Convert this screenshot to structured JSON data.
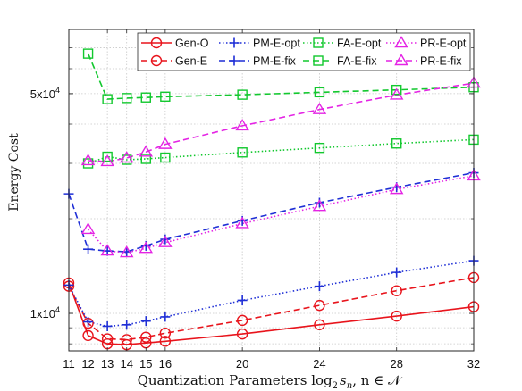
{
  "chart_data": {
    "type": "line",
    "title": "",
    "xlabel": "Quantization Parameters log",
    "xlabel_sub": "2",
    "xlabel_var": "s",
    "xlabel_var_sub": "n",
    "xlabel_tail": ", n ∈ 𝒩",
    "ylabel": "Energy Cost",
    "yscale": "log",
    "ylim": [
      7600,
      80000
    ],
    "xlim": [
      11,
      32
    ],
    "x_ticks": [
      11,
      12,
      13,
      14,
      15,
      16,
      20,
      24,
      28,
      32
    ],
    "y_tick_labels": [
      {
        "value": 10000,
        "label": "1x10",
        "exp": "4"
      },
      {
        "value": 50000,
        "label": "5x10",
        "exp": "4"
      }
    ],
    "grid": true,
    "legend_position": "top-right",
    "series": [
      {
        "name": "Gen-O",
        "color": "#e8141c",
        "dash": "solid",
        "marker": "circle",
        "x": [
          11,
          12,
          13,
          14,
          15,
          16,
          20,
          24,
          28,
          32
        ],
        "y": [
          12500,
          8500,
          8000,
          7950,
          8050,
          8150,
          8600,
          9200,
          9800,
          10500
        ]
      },
      {
        "name": "Gen-E",
        "color": "#e8141c",
        "dash": "dashed",
        "marker": "circle",
        "x": [
          11,
          12,
          13,
          14,
          15,
          16,
          20,
          24,
          28,
          32
        ],
        "y": [
          12200,
          9300,
          8300,
          8250,
          8400,
          8650,
          9500,
          10600,
          11800,
          13000
        ]
      },
      {
        "name": "PM-E-opt",
        "color": "#1f2fd6",
        "dash": "dotted",
        "marker": "plus",
        "x": [
          11,
          12,
          13,
          14,
          15,
          16,
          20,
          24,
          28,
          32
        ],
        "y": [
          12300,
          9400,
          9100,
          9200,
          9450,
          9750,
          11000,
          12200,
          13500,
          14700
        ]
      },
      {
        "name": "PM-E-fix",
        "color": "#1f2fd6",
        "dash": "dashed",
        "marker": "plus",
        "x": [
          11,
          12,
          13,
          14,
          15,
          16,
          20,
          24,
          28,
          32
        ],
        "y": [
          24000,
          16000,
          15800,
          15700,
          16400,
          17200,
          19700,
          22500,
          25200,
          28000
        ]
      },
      {
        "name": "FA-E-opt",
        "color": "#12c82e",
        "dash": "dotted",
        "marker": "square",
        "x": [
          12,
          13,
          14,
          15,
          16,
          20,
          24,
          28,
          32
        ],
        "y": [
          30000,
          31500,
          30800,
          31000,
          31300,
          32500,
          33600,
          34700,
          35700
        ]
      },
      {
        "name": "FA-E-fix",
        "color": "#12c82e",
        "dash": "dashed",
        "marker": "square",
        "x": [
          12,
          13,
          14,
          15,
          16,
          20,
          24,
          28,
          32
        ],
        "y": [
          67000,
          48000,
          48400,
          48600,
          48900,
          49600,
          50500,
          51400,
          52400
        ]
      },
      {
        "name": "PR-E-opt",
        "color": "#e424e4",
        "dash": "dotted",
        "marker": "triangle",
        "x": [
          12,
          13,
          14,
          15,
          16,
          20,
          24,
          28,
          32
        ],
        "y": [
          18500,
          15800,
          15600,
          16100,
          16800,
          19300,
          21900,
          24800,
          27400
        ]
      },
      {
        "name": "PR-E-fix",
        "color": "#e424e4",
        "dash": "dashed",
        "marker": "triangle",
        "x": [
          12,
          13,
          14,
          15,
          16,
          20,
          24,
          28,
          32
        ],
        "y": [
          30600,
          30400,
          31200,
          32600,
          34500,
          39500,
          44500,
          49500,
          54000
        ]
      }
    ]
  }
}
